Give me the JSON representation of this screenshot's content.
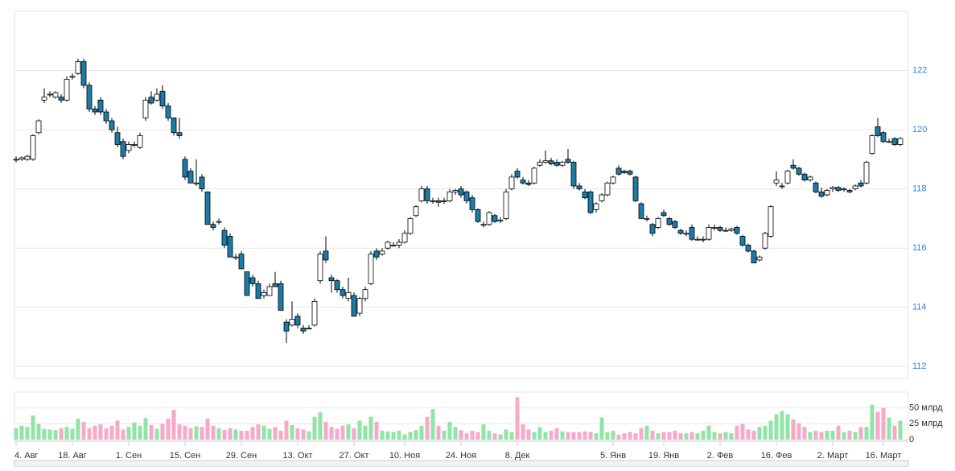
{
  "chart_data": {
    "type": "candlestick",
    "categories": [
      "4. Авг",
      null,
      null,
      null,
      null,
      null,
      null,
      null,
      null,
      null,
      "18. Авг",
      null,
      null,
      null,
      null,
      null,
      null,
      null,
      null,
      null,
      "1. Сен",
      null,
      null,
      null,
      null,
      null,
      null,
      null,
      null,
      null,
      "15. Сен",
      null,
      null,
      null,
      null,
      null,
      null,
      null,
      null,
      null,
      "29. Сен",
      null,
      null,
      null,
      null,
      null,
      null,
      null,
      null,
      null,
      "13. Окт",
      null,
      null,
      null,
      null,
      null,
      null,
      null,
      null,
      null,
      "27. Окт",
      null,
      null,
      null,
      null,
      null,
      null,
      null,
      null,
      "10. Ноя",
      null,
      null,
      null,
      null,
      null,
      null,
      null,
      null,
      null,
      "24. Ноя",
      null,
      null,
      null,
      null,
      null,
      null,
      null,
      null,
      null,
      "8. Дек",
      null,
      null,
      null,
      null,
      null,
      null,
      null,
      null,
      null,
      null,
      null,
      null,
      null,
      null,
      null,
      null,
      "5. Янв",
      null,
      null,
      null,
      null,
      null,
      null,
      null,
      null,
      "19. Янв",
      null,
      null,
      null,
      null,
      null,
      null,
      null,
      null,
      null,
      "2. Фев",
      null,
      null,
      null,
      null,
      null,
      null,
      null,
      null,
      null,
      "16. Фев",
      null,
      null,
      null,
      null,
      null,
      null,
      null,
      null,
      null,
      "2. Март",
      null,
      null,
      null,
      null,
      null,
      null,
      null,
      null,
      "16. Март",
      null,
      null,
      null
    ],
    "open": [
      119.0,
      119.0,
      119.0,
      119.0,
      119.9,
      121.0,
      121.2,
      121.1,
      121.1,
      121.0,
      121.8,
      121.9,
      122.3,
      121.5,
      120.7,
      121.0,
      120.6,
      120.3,
      119.9,
      119.6,
      119.3,
      119.5,
      119.4,
      120.4,
      121.1,
      121.0,
      121.3,
      120.8,
      120.4,
      119.9,
      119.0,
      118.6,
      118.2,
      118.4,
      117.9,
      116.8,
      116.9,
      116.6,
      116.4,
      115.7,
      115.8,
      115.2,
      115.0,
      114.8,
      114.4,
      114.4,
      114.8,
      114.8,
      113.5,
      113.4,
      113.7,
      113.3,
      113.3,
      113.4,
      114.9,
      115.9,
      115.0,
      114.9,
      114.6,
      114.3,
      114.4,
      113.8,
      114.3,
      114.8,
      115.9,
      115.8,
      116.0,
      116.1,
      116.1,
      116.2,
      116.5,
      117.1,
      117.6,
      118.0,
      117.6,
      117.6,
      117.6,
      117.6,
      117.9,
      118.0,
      117.9,
      117.7,
      117.3,
      116.8,
      116.8,
      117.1,
      116.95,
      117.0,
      118.0,
      118.6,
      118.3,
      118.2,
      118.2,
      118.8,
      118.9,
      118.95,
      118.9,
      118.8,
      119.0,
      118.9,
      118.1,
      117.9,
      117.9,
      117.3,
      117.6,
      117.8,
      118.2,
      118.7,
      118.6,
      118.6,
      118.4,
      117.5,
      117.0,
      116.8,
      116.7,
      117.2,
      117.0,
      116.9,
      116.6,
      116.5,
      116.7,
      116.3,
      116.3,
      116.3,
      116.7,
      116.7,
      116.6,
      116.6,
      116.7,
      116.4,
      116.1,
      115.9,
      115.6,
      116.0,
      116.4,
      118.2,
      118.1,
      118.2,
      118.8,
      118.7,
      118.5,
      118.3,
      118.2,
      117.9,
      117.8,
      118.0,
      118.05,
      118.0,
      117.95,
      118.0,
      118.2,
      118.2,
      119.2,
      120.1,
      119.9,
      119.6,
      119.7,
      119.5
    ],
    "high": [
      119.1,
      119.1,
      119.15,
      119.85,
      120.35,
      121.4,
      121.3,
      121.3,
      121.2,
      121.8,
      121.9,
      122.4,
      122.4,
      121.6,
      120.8,
      121.1,
      120.7,
      120.4,
      120.1,
      119.7,
      119.6,
      119.6,
      119.9,
      121.1,
      121.3,
      121.4,
      121.5,
      120.9,
      120.4,
      120.4,
      119.1,
      118.7,
      119.0,
      118.5,
      117.9,
      116.9,
      117.0,
      116.7,
      116.5,
      115.8,
      115.9,
      115.2,
      115.1,
      114.9,
      114.6,
      114.8,
      115.2,
      114.9,
      113.6,
      114.2,
      113.8,
      113.4,
      113.4,
      114.3,
      115.9,
      116.4,
      115.1,
      114.95,
      114.7,
      115.0,
      114.5,
      114.35,
      114.7,
      115.9,
      116.0,
      116.0,
      116.25,
      116.2,
      116.3,
      116.6,
      117.05,
      117.45,
      118.1,
      118.1,
      117.7,
      117.7,
      117.7,
      118.0,
      118.0,
      118.1,
      117.95,
      117.8,
      117.35,
      116.9,
      117.25,
      117.15,
      117.05,
      118.0,
      118.5,
      118.7,
      118.4,
      118.3,
      118.75,
      119.0,
      119.3,
      119.05,
      119.0,
      118.95,
      119.35,
      118.95,
      118.2,
      118.0,
      117.95,
      117.55,
      117.85,
      118.25,
      118.45,
      118.8,
      118.65,
      118.65,
      118.45,
      117.55,
      117.1,
      116.85,
      117.05,
      117.3,
      117.05,
      116.95,
      116.65,
      116.6,
      116.8,
      116.4,
      116.4,
      116.8,
      116.8,
      116.75,
      116.7,
      116.7,
      116.75,
      116.45,
      116.15,
      115.95,
      115.75,
      116.55,
      117.45,
      118.6,
      118.2,
      118.65,
      119.0,
      118.75,
      118.55,
      118.45,
      118.25,
      118.05,
      118.0,
      118.1,
      118.1,
      118.05,
      118.0,
      118.15,
      118.3,
      118.95,
      119.85,
      120.4,
      119.95,
      119.7,
      119.75,
      119.75
    ],
    "low": [
      118.9,
      118.95,
      118.95,
      118.95,
      119.85,
      120.9,
      121.1,
      121.05,
      120.9,
      120.95,
      121.7,
      121.85,
      121.4,
      120.6,
      120.5,
      120.5,
      120.2,
      119.9,
      119.4,
      119.0,
      119.2,
      119.4,
      119.35,
      120.3,
      120.85,
      120.95,
      120.7,
      120.3,
      119.8,
      119.7,
      118.3,
      118.2,
      118.1,
      117.9,
      116.8,
      116.6,
      116.8,
      116.0,
      115.7,
      115.6,
      115.3,
      114.4,
      114.7,
      114.3,
      114.3,
      114.4,
      114.7,
      113.9,
      112.8,
      113.35,
      113.3,
      113.1,
      113.25,
      113.35,
      114.8,
      115.5,
      114.5,
      114.5,
      114.3,
      114.2,
      113.7,
      113.7,
      114.2,
      114.75,
      115.6,
      115.75,
      115.95,
      116.05,
      116.0,
      116.15,
      116.45,
      117.05,
      117.55,
      117.5,
      117.5,
      117.4,
      117.5,
      117.55,
      117.8,
      117.7,
      117.5,
      117.2,
      116.85,
      116.7,
      116.75,
      116.85,
      116.85,
      116.95,
      117.95,
      118.35,
      118.15,
      118.1,
      118.15,
      118.75,
      118.85,
      118.8,
      118.75,
      118.75,
      118.85,
      118.0,
      117.95,
      117.65,
      117.15,
      117.2,
      117.55,
      117.75,
      118.15,
      118.45,
      118.5,
      118.45,
      117.55,
      117.0,
      116.9,
      116.4,
      116.65,
      117.05,
      116.75,
      116.65,
      116.45,
      116.4,
      116.25,
      116.25,
      116.2,
      116.25,
      116.6,
      116.55,
      116.55,
      116.55,
      116.45,
      116.05,
      115.85,
      115.5,
      115.55,
      115.95,
      116.35,
      118.1,
      118.0,
      118.15,
      118.65,
      118.45,
      118.25,
      118.25,
      117.85,
      117.7,
      117.75,
      117.9,
      117.9,
      117.9,
      117.85,
      117.95,
      118.05,
      118.15,
      119.15,
      119.75,
      119.55,
      119.55,
      119.45,
      119.45
    ],
    "close": [
      119.0,
      119.05,
      119.1,
      119.8,
      120.3,
      121.1,
      121.2,
      121.25,
      121.0,
      121.7,
      121.8,
      122.3,
      121.5,
      120.7,
      120.6,
      120.6,
      120.3,
      120.0,
      119.5,
      119.1,
      119.5,
      119.5,
      119.8,
      121.0,
      120.9,
      121.2,
      120.8,
      120.4,
      119.9,
      119.8,
      118.4,
      118.2,
      118.2,
      118.0,
      116.8,
      116.7,
      116.9,
      116.1,
      115.7,
      115.7,
      115.3,
      114.4,
      114.8,
      114.3,
      114.5,
      114.7,
      114.7,
      113.9,
      113.2,
      113.6,
      113.4,
      113.2,
      113.3,
      114.2,
      115.8,
      115.6,
      114.9,
      114.6,
      114.4,
      114.5,
      113.7,
      114.3,
      114.6,
      115.8,
      115.7,
      115.9,
      116.2,
      116.1,
      116.2,
      116.5,
      117.0,
      117.4,
      118.0,
      117.6,
      117.6,
      117.55,
      117.6,
      117.9,
      117.95,
      117.8,
      117.6,
      117.3,
      116.9,
      116.8,
      117.2,
      116.9,
      116.95,
      117.9,
      118.4,
      118.4,
      118.2,
      118.15,
      118.7,
      118.9,
      118.95,
      118.85,
      118.8,
      118.9,
      118.9,
      118.1,
      118.0,
      117.7,
      117.2,
      117.5,
      117.8,
      118.2,
      118.4,
      118.5,
      118.55,
      118.5,
      117.6,
      117.0,
      117.0,
      116.5,
      117.0,
      117.1,
      116.8,
      116.7,
      116.5,
      116.5,
      116.3,
      116.3,
      116.3,
      116.7,
      116.7,
      116.6,
      116.6,
      116.65,
      116.5,
      116.1,
      115.9,
      115.5,
      115.7,
      116.5,
      117.4,
      118.3,
      118.1,
      118.6,
      118.7,
      118.5,
      118.3,
      118.4,
      117.9,
      117.75,
      117.95,
      118.05,
      117.95,
      118.0,
      117.9,
      118.1,
      118.1,
      118.9,
      119.8,
      119.8,
      119.6,
      119.6,
      119.5,
      119.7
    ],
    "volume": [
      18,
      22,
      20,
      38,
      25,
      17,
      16,
      15,
      18,
      20,
      17,
      33,
      28,
      18,
      22,
      24,
      18,
      22,
      30,
      16,
      20,
      27,
      22,
      34,
      23,
      17,
      25,
      33,
      47,
      24,
      22,
      18,
      21,
      20,
      33,
      22,
      18,
      15,
      18,
      16,
      14,
      14,
      20,
      24,
      22,
      17,
      20,
      14,
      30,
      23,
      18,
      16,
      13,
      36,
      43,
      28,
      20,
      17,
      22,
      24,
      18,
      30,
      22,
      36,
      28,
      14,
      13,
      12,
      14,
      8,
      12,
      15,
      22,
      36,
      48,
      22,
      14,
      28,
      20,
      15,
      10,
      14,
      12,
      24,
      14,
      10,
      8,
      16,
      12,
      67,
      24,
      16,
      12,
      20,
      12,
      14,
      18,
      13,
      12,
      12,
      12,
      13,
      12,
      10,
      35,
      12,
      14,
      8,
      10,
      12,
      10,
      18,
      22,
      14,
      10,
      12,
      12,
      14,
      10,
      10,
      12,
      10,
      14,
      22,
      12,
      10,
      12,
      10,
      22,
      25,
      16,
      14,
      20,
      22,
      30,
      40,
      45,
      40,
      32,
      26,
      20,
      12,
      14,
      12,
      14,
      14,
      22,
      12,
      14,
      12,
      20,
      20,
      55,
      44,
      50,
      35,
      22,
      30
    ],
    "ylim": [
      111.6,
      124
    ],
    "yticks": [
      112,
      114,
      116,
      118,
      120,
      122
    ],
    "vol_ylim": [
      0,
      75
    ],
    "vol_yticks": [
      {
        "value": 0,
        "label": "0"
      },
      {
        "value": 25,
        "label": "25 млрд"
      },
      {
        "value": 50,
        "label": "50 млрд"
      }
    ],
    "up_color": "#ffffff",
    "down_color": "#1b7ca8",
    "volume_up_color": "#90e5a5",
    "volume_down_color": "#f7a9c8",
    "grid": true
  }
}
